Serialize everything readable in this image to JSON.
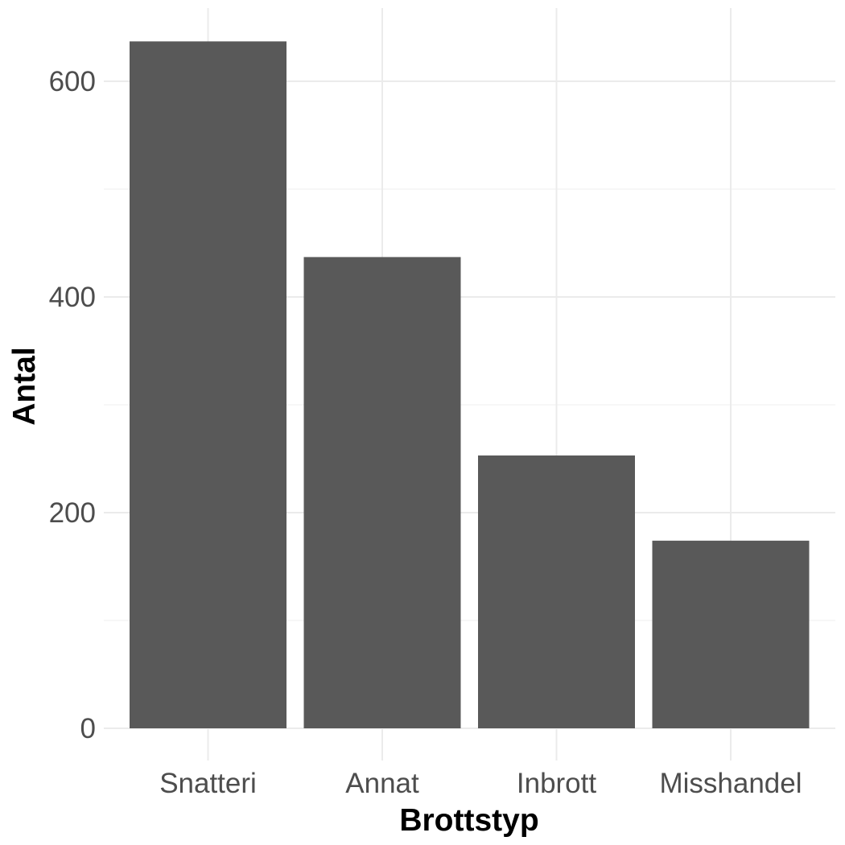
{
  "chart_data": {
    "type": "bar",
    "categories": [
      "Snatteri",
      "Annat",
      "Inbrott",
      "Misshandel"
    ],
    "values": [
      637,
      437,
      253,
      174
    ],
    "xlabel": "Brottstyp",
    "ylabel": "Antal",
    "ylim": [
      0,
      665
    ],
    "yticks": [
      0,
      200,
      400,
      600
    ],
    "yticks_minor": [
      100,
      300,
      500
    ],
    "grid": true,
    "bar_color": "#595959",
    "grid_color": "#ebebeb"
  }
}
